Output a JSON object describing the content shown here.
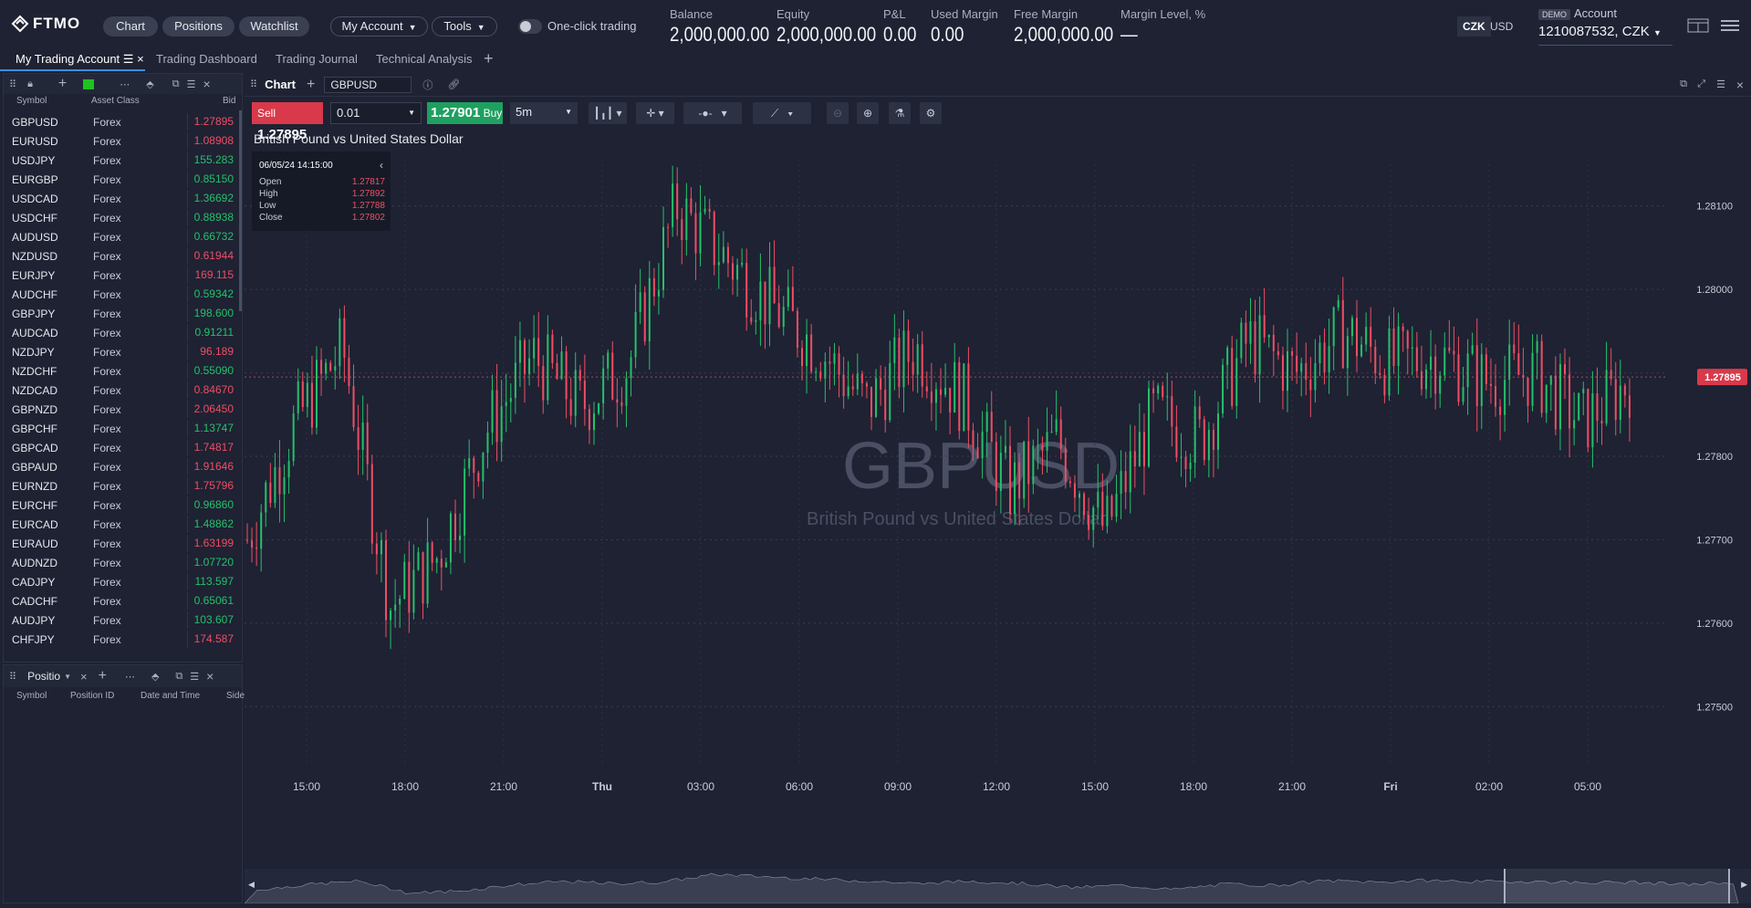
{
  "header": {
    "logo": "FTMO",
    "nav": [
      "Chart",
      "Positions",
      "Watchlist"
    ],
    "my_account": "My Account",
    "tools": "Tools",
    "one_click": "One-click trading",
    "metrics": [
      {
        "label": "Balance",
        "value": "2,000,000.00"
      },
      {
        "label": "Equity",
        "value": "2,000,000.00"
      },
      {
        "label": "P&L",
        "value": "0.00"
      },
      {
        "label": "Used Margin",
        "value": "0.00"
      },
      {
        "label": "Free Margin",
        "value": "2,000,000.00"
      },
      {
        "label": "Margin Level, %",
        "value": "—"
      }
    ],
    "currencies": [
      "CZK",
      "USD"
    ],
    "account_badge": "DEMO",
    "account_label": "Account",
    "account_number": "1210087532, CZK"
  },
  "tabs": [
    "My Trading Account",
    "Trading Dashboard",
    "Trading Journal",
    "Technical Analysis"
  ],
  "watchlist": {
    "columns": [
      "Symbol",
      "Asset Class",
      "Bid"
    ],
    "rows": [
      {
        "symbol": "GBPUSD",
        "class": "Forex",
        "bid": "1.27895",
        "dir": "dn"
      },
      {
        "symbol": "EURUSD",
        "class": "Forex",
        "bid": "1.08908",
        "dir": "dn"
      },
      {
        "symbol": "USDJPY",
        "class": "Forex",
        "bid": "155.283",
        "dir": "up"
      },
      {
        "symbol": "EURGBP",
        "class": "Forex",
        "bid": "0.85150",
        "dir": "up"
      },
      {
        "symbol": "USDCAD",
        "class": "Forex",
        "bid": "1.36692",
        "dir": "up"
      },
      {
        "symbol": "USDCHF",
        "class": "Forex",
        "bid": "0.88938",
        "dir": "up"
      },
      {
        "symbol": "AUDUSD",
        "class": "Forex",
        "bid": "0.66732",
        "dir": "up"
      },
      {
        "symbol": "NZDUSD",
        "class": "Forex",
        "bid": "0.61944",
        "dir": "dn"
      },
      {
        "symbol": "EURJPY",
        "class": "Forex",
        "bid": "169.115",
        "dir": "dn"
      },
      {
        "symbol": "AUDCHF",
        "class": "Forex",
        "bid": "0.59342",
        "dir": "up"
      },
      {
        "symbol": "GBPJPY",
        "class": "Forex",
        "bid": "198.600",
        "dir": "up"
      },
      {
        "symbol": "AUDCAD",
        "class": "Forex",
        "bid": "0.91211",
        "dir": "up"
      },
      {
        "symbol": "NZDJPY",
        "class": "Forex",
        "bid": "96.189",
        "dir": "dn"
      },
      {
        "symbol": "NZDCHF",
        "class": "Forex",
        "bid": "0.55090",
        "dir": "up"
      },
      {
        "symbol": "NZDCAD",
        "class": "Forex",
        "bid": "0.84670",
        "dir": "dn"
      },
      {
        "symbol": "GBPNZD",
        "class": "Forex",
        "bid": "2.06450",
        "dir": "dn"
      },
      {
        "symbol": "GBPCHF",
        "class": "Forex",
        "bid": "1.13747",
        "dir": "up"
      },
      {
        "symbol": "GBPCAD",
        "class": "Forex",
        "bid": "1.74817",
        "dir": "dn"
      },
      {
        "symbol": "GBPAUD",
        "class": "Forex",
        "bid": "1.91646",
        "dir": "dn"
      },
      {
        "symbol": "EURNZD",
        "class": "Forex",
        "bid": "1.75796",
        "dir": "dn"
      },
      {
        "symbol": "EURCHF",
        "class": "Forex",
        "bid": "0.96860",
        "dir": "up"
      },
      {
        "symbol": "EURCAD",
        "class": "Forex",
        "bid": "1.48862",
        "dir": "up"
      },
      {
        "symbol": "EURAUD",
        "class": "Forex",
        "bid": "1.63199",
        "dir": "dn"
      },
      {
        "symbol": "AUDNZD",
        "class": "Forex",
        "bid": "1.07720",
        "dir": "up"
      },
      {
        "symbol": "CADJPY",
        "class": "Forex",
        "bid": "113.597",
        "dir": "up"
      },
      {
        "symbol": "CADCHF",
        "class": "Forex",
        "bid": "0.65061",
        "dir": "up"
      },
      {
        "symbol": "AUDJPY",
        "class": "Forex",
        "bid": "103.607",
        "dir": "up"
      },
      {
        "symbol": "CHFJPY",
        "class": "Forex",
        "bid": "174.587",
        "dir": "dn"
      }
    ]
  },
  "positions_panel": {
    "title": "Positio",
    "columns": [
      "Symbol",
      "Position ID",
      "Date and Time",
      "Side"
    ]
  },
  "chart": {
    "panel_title": "Chart",
    "symbol_input": "GBPUSD",
    "sell_label": "Sell",
    "sell_price": "1.27895",
    "quantity": "0.01",
    "buy_price": "1.27901",
    "buy_label": "Buy",
    "timeframe": "5m",
    "title": "British Pound vs United States Dollar",
    "watermark_symbol": "GBPUSD",
    "watermark_name": "British Pound vs United States Dollar",
    "ohlc": {
      "datetime": "06/05/24 14:15:00",
      "labels": [
        "Open",
        "High",
        "Low",
        "Close"
      ],
      "values": [
        "1.27817",
        "1.27892",
        "1.27788",
        "1.27802"
      ]
    },
    "price_ticks": [
      "1.28100",
      "1.28000",
      "1.27900",
      "1.27800",
      "1.27700",
      "1.27600",
      "1.27500"
    ],
    "current_price": "1.27895",
    "time_ticks": [
      "15:00",
      "18:00",
      "21:00",
      "Thu",
      "03:00",
      "06:00",
      "09:00",
      "12:00",
      "15:00",
      "18:00",
      "21:00",
      "Fri",
      "02:00",
      "05:00"
    ],
    "colors": {
      "up": "#26c06b",
      "down": "#ef4e63"
    }
  },
  "chart_data": {
    "type": "candlestick",
    "title": "British Pound vs United States Dollar",
    "ylim": [
      1.2745,
      1.2815
    ],
    "close_path": [
      1.277,
      1.2784,
      1.2793,
      1.2762,
      1.2768,
      1.2783,
      1.2792,
      1.2786,
      1.2791,
      1.281,
      1.2804,
      1.2798,
      1.2793,
      1.2786,
      1.2793,
      1.2787,
      1.2776,
      1.2782,
      1.2771,
      1.2785,
      1.2782,
      1.2794,
      1.279,
      1.2795,
      1.2791,
      1.2792,
      1.2789,
      1.279,
      1.2784,
      1.2789
    ],
    "current": 1.27895
  }
}
